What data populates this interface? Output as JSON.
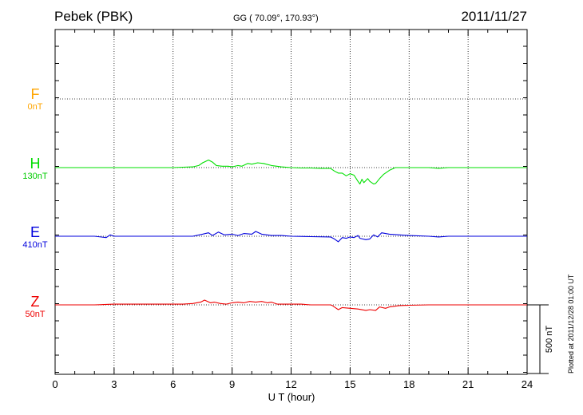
{
  "header": {
    "station": "Pebek (PBK)",
    "coords": "GG ( 70.09°, 170.93°)",
    "date": "2011/11/27"
  },
  "plotted_note": "Plotted at 2011/12/28 01:00 UT",
  "chart_data": {
    "type": "line",
    "title": "Pebek (PBK)",
    "xlabel": "U T (hour)",
    "xlim": [
      0,
      24
    ],
    "x_ticks": [
      "0",
      "3",
      "6",
      "9",
      "12",
      "15",
      "18",
      "21",
      "24"
    ],
    "grid": true,
    "scale_bar": "500 nT",
    "scale_nT": 500,
    "series": [
      {
        "name": "F",
        "offset": "0nT",
        "color": "#ffa500",
        "baseline_level": 3,
        "points": []
      },
      {
        "name": "H",
        "offset": "130nT",
        "color": "#00e000",
        "baseline_level": 2,
        "points": [
          [
            0,
            0
          ],
          [
            1,
            0
          ],
          [
            2,
            0
          ],
          [
            3,
            0
          ],
          [
            4,
            0
          ],
          [
            5,
            0
          ],
          [
            6,
            0
          ],
          [
            6.5,
            3
          ],
          [
            7,
            5
          ],
          [
            7.3,
            15
          ],
          [
            7.5,
            35
          ],
          [
            7.8,
            55
          ],
          [
            8,
            40
          ],
          [
            8.2,
            15
          ],
          [
            8.5,
            10
          ],
          [
            8.8,
            10
          ],
          [
            9,
            5
          ],
          [
            9.3,
            15
          ],
          [
            9.5,
            10
          ],
          [
            9.8,
            30
          ],
          [
            10,
            25
          ],
          [
            10.3,
            35
          ],
          [
            10.6,
            30
          ],
          [
            11,
            15
          ],
          [
            11.5,
            5
          ],
          [
            12,
            0
          ],
          [
            12.5,
            -3
          ],
          [
            13,
            -3
          ],
          [
            13.5,
            -5
          ],
          [
            14,
            -5
          ],
          [
            14.2,
            -25
          ],
          [
            14.4,
            -40
          ],
          [
            14.6,
            -40
          ],
          [
            14.8,
            -60
          ],
          [
            15,
            -45
          ],
          [
            15.2,
            -55
          ],
          [
            15.4,
            -100
          ],
          [
            15.5,
            -120
          ],
          [
            15.6,
            -85
          ],
          [
            15.7,
            -110
          ],
          [
            15.9,
            -80
          ],
          [
            16,
            -100
          ],
          [
            16.2,
            -120
          ],
          [
            16.3,
            -115
          ],
          [
            16.5,
            -80
          ],
          [
            16.7,
            -50
          ],
          [
            17,
            -20
          ],
          [
            17.3,
            0
          ],
          [
            18,
            0
          ],
          [
            19,
            0
          ],
          [
            19.5,
            -5
          ],
          [
            20,
            0
          ],
          [
            21,
            0
          ],
          [
            22,
            0
          ],
          [
            23,
            0
          ],
          [
            24,
            0
          ]
        ]
      },
      {
        "name": "E",
        "offset": "410nT",
        "color": "#0000dd",
        "baseline_level": 1,
        "points": [
          [
            0,
            0
          ],
          [
            1,
            0
          ],
          [
            2,
            0
          ],
          [
            2.6,
            -10
          ],
          [
            2.8,
            10
          ],
          [
            3,
            0
          ],
          [
            4,
            0
          ],
          [
            5,
            0
          ],
          [
            6,
            0
          ],
          [
            7,
            0
          ],
          [
            7.5,
            15
          ],
          [
            7.8,
            25
          ],
          [
            8,
            5
          ],
          [
            8.3,
            30
          ],
          [
            8.6,
            10
          ],
          [
            9,
            15
          ],
          [
            9.3,
            5
          ],
          [
            9.6,
            20
          ],
          [
            10,
            15
          ],
          [
            10.2,
            35
          ],
          [
            10.5,
            15
          ],
          [
            11,
            5
          ],
          [
            11.5,
            5
          ],
          [
            12,
            0
          ],
          [
            13,
            -3
          ],
          [
            14,
            -5
          ],
          [
            14.2,
            -20
          ],
          [
            14.4,
            -40
          ],
          [
            14.6,
            -10
          ],
          [
            14.8,
            -15
          ],
          [
            15,
            -5
          ],
          [
            15.2,
            -10
          ],
          [
            15.4,
            5
          ],
          [
            15.5,
            -15
          ],
          [
            15.8,
            -25
          ],
          [
            16,
            -20
          ],
          [
            16.2,
            10
          ],
          [
            16.4,
            -5
          ],
          [
            16.6,
            25
          ],
          [
            17,
            15
          ],
          [
            17.5,
            10
          ],
          [
            18,
            5
          ],
          [
            19,
            0
          ],
          [
            19.5,
            -5
          ],
          [
            20,
            0
          ],
          [
            21,
            0
          ],
          [
            22,
            0
          ],
          [
            23,
            0
          ],
          [
            24,
            0
          ]
        ]
      },
      {
        "name": "Z",
        "offset": "50nT",
        "color": "#ee0000",
        "baseline_level": 0,
        "points": [
          [
            0,
            0
          ],
          [
            1,
            0
          ],
          [
            2,
            0
          ],
          [
            3,
            5
          ],
          [
            4,
            5
          ],
          [
            5,
            5
          ],
          [
            6,
            5
          ],
          [
            6.5,
            5
          ],
          [
            7,
            10
          ],
          [
            7.4,
            20
          ],
          [
            7.6,
            35
          ],
          [
            7.9,
            15
          ],
          [
            8.1,
            20
          ],
          [
            8.4,
            10
          ],
          [
            8.7,
            5
          ],
          [
            9,
            15
          ],
          [
            9.3,
            20
          ],
          [
            9.6,
            15
          ],
          [
            9.9,
            25
          ],
          [
            10.2,
            20
          ],
          [
            10.5,
            25
          ],
          [
            10.8,
            15
          ],
          [
            11,
            20
          ],
          [
            11.3,
            5
          ],
          [
            12,
            5
          ],
          [
            12.5,
            5
          ],
          [
            13,
            0
          ],
          [
            14,
            0
          ],
          [
            14.1,
            -5
          ],
          [
            14.3,
            -25
          ],
          [
            14.4,
            -35
          ],
          [
            14.6,
            -20
          ],
          [
            15,
            -25
          ],
          [
            15.4,
            -30
          ],
          [
            15.8,
            -40
          ],
          [
            16,
            -35
          ],
          [
            16.3,
            -40
          ],
          [
            16.5,
            -15
          ],
          [
            16.8,
            -25
          ],
          [
            17,
            -15
          ],
          [
            17.5,
            -5
          ],
          [
            18,
            -3
          ],
          [
            19,
            0
          ],
          [
            20,
            0
          ],
          [
            21,
            0
          ],
          [
            22,
            0
          ],
          [
            23,
            0
          ],
          [
            24,
            0
          ]
        ]
      }
    ]
  }
}
